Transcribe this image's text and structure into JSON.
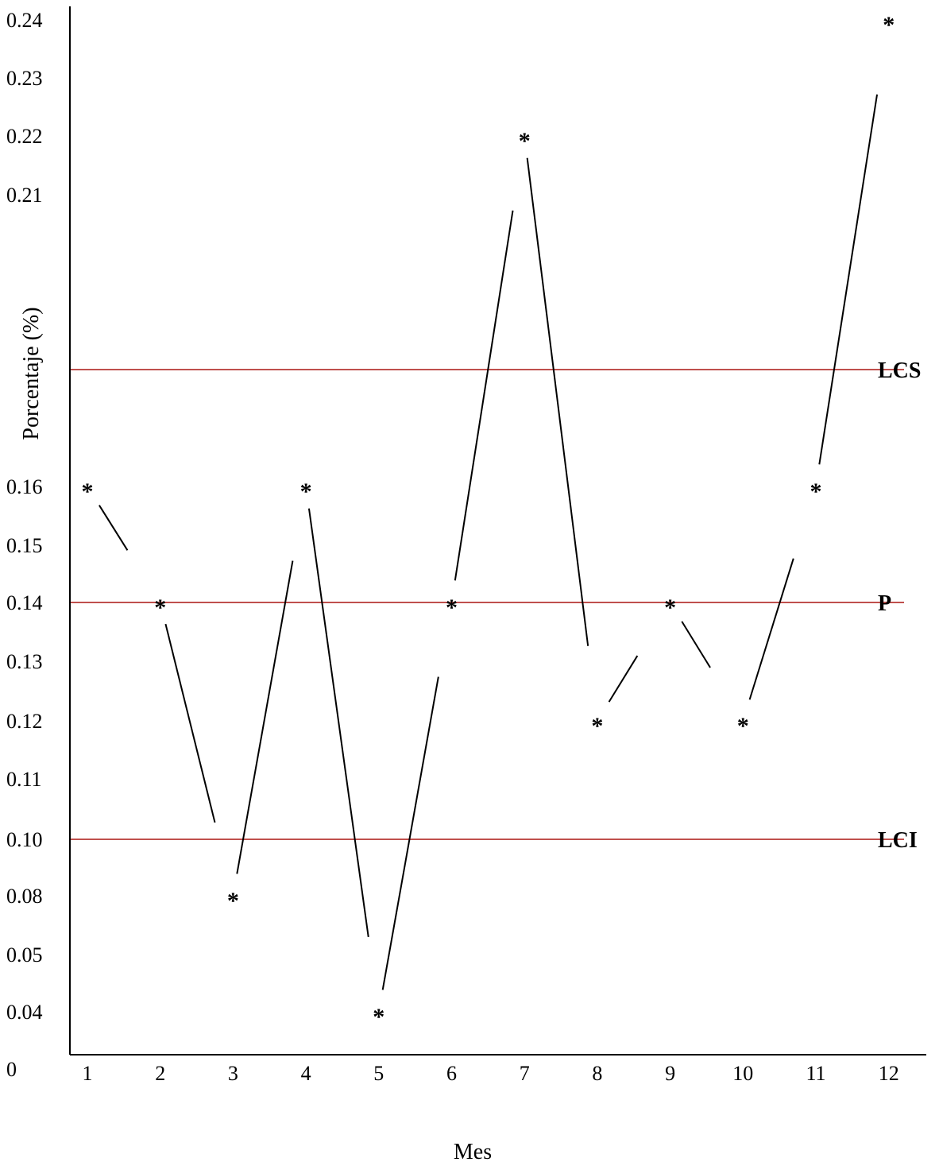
{
  "chart_data": {
    "type": "line",
    "title": "",
    "xlabel": "Mes",
    "ylabel": "Porcentaje (%)",
    "categories": [
      "1",
      "2",
      "3",
      "4",
      "5",
      "6",
      "7",
      "8",
      "9",
      "10",
      "11",
      "12"
    ],
    "y_ticks": [
      "0",
      "0.04",
      "0.05",
      "0.08",
      "0.10",
      "0.11",
      "0.12",
      "0.13",
      "0.14",
      "0.15",
      "0.16",
      "0.21",
      "0.22",
      "0.23",
      "0.24"
    ],
    "series": [
      {
        "marker": "*",
        "values": [
          0.16,
          0.14,
          0.08,
          0.16,
          0.04,
          0.14,
          0.22,
          0.12,
          0.14,
          0.12,
          0.16,
          0.24
        ]
      }
    ],
    "reference_lines": [
      {
        "label": "LCS",
        "value": 0.18,
        "color": "#c0504d"
      },
      {
        "label": "P",
        "value": 0.14,
        "color": "#c0504d"
      },
      {
        "label": "LCI",
        "value": 0.1,
        "color": "#c0504d"
      }
    ],
    "grid": false,
    "legend": "none"
  }
}
